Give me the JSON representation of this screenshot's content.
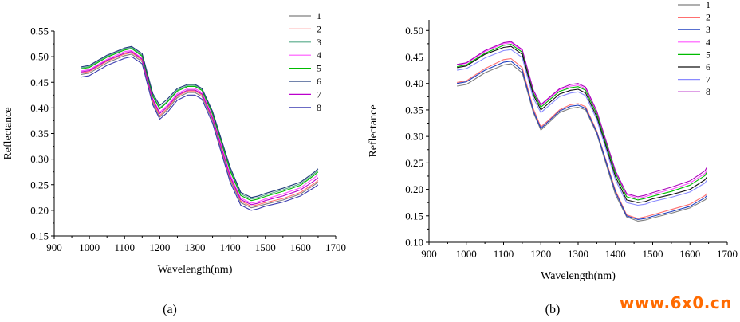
{
  "chart_data": [
    {
      "type": "line",
      "panel_label": "(a)",
      "xlabel": "Wavelength(nm)",
      "ylabel": "Reflectance",
      "xlim": [
        900,
        1700
      ],
      "ylim": [
        0.15,
        0.55
      ],
      "xticks": [
        900,
        1000,
        1100,
        1200,
        1300,
        1400,
        1500,
        1600,
        1700
      ],
      "yticks": [
        "0.15",
        "0.20",
        "0.25",
        "0.30",
        "0.35",
        "0.40",
        "0.45",
        "0.50",
        "0.55"
      ],
      "grid": false,
      "legend_position": "top-right",
      "x": [
        975,
        1000,
        1050,
        1100,
        1120,
        1150,
        1180,
        1200,
        1220,
        1250,
        1280,
        1300,
        1320,
        1350,
        1400,
        1430,
        1460,
        1480,
        1500,
        1550,
        1600,
        1640,
        1650
      ],
      "series": [
        {
          "name": "1",
          "color": "#7f7f7f",
          "values": [
            0.465,
            0.468,
            0.488,
            0.502,
            0.505,
            0.49,
            0.41,
            0.382,
            0.395,
            0.42,
            0.43,
            0.43,
            0.422,
            0.375,
            0.26,
            0.215,
            0.205,
            0.208,
            0.212,
            0.22,
            0.232,
            0.25,
            0.255
          ]
        },
        {
          "name": "2",
          "color": "#ff6f6f",
          "values": [
            0.468,
            0.471,
            0.491,
            0.505,
            0.508,
            0.493,
            0.413,
            0.385,
            0.398,
            0.423,
            0.433,
            0.433,
            0.425,
            0.378,
            0.263,
            0.218,
            0.208,
            0.211,
            0.215,
            0.223,
            0.235,
            0.253,
            0.258
          ]
        },
        {
          "name": "3",
          "color": "#55aa88",
          "values": [
            0.478,
            0.481,
            0.501,
            0.515,
            0.518,
            0.503,
            0.425,
            0.4,
            0.412,
            0.435,
            0.444,
            0.444,
            0.436,
            0.39,
            0.28,
            0.232,
            0.222,
            0.225,
            0.23,
            0.24,
            0.252,
            0.272,
            0.278
          ]
        },
        {
          "name": "4",
          "color": "#ff55ff",
          "values": [
            0.472,
            0.475,
            0.495,
            0.51,
            0.512,
            0.497,
            0.418,
            0.392,
            0.404,
            0.428,
            0.438,
            0.438,
            0.43,
            0.383,
            0.27,
            0.224,
            0.214,
            0.217,
            0.222,
            0.232,
            0.244,
            0.264,
            0.27
          ]
        },
        {
          "name": "5",
          "color": "#00bb00",
          "values": [
            0.476,
            0.479,
            0.499,
            0.513,
            0.516,
            0.501,
            0.423,
            0.398,
            0.41,
            0.433,
            0.442,
            0.442,
            0.434,
            0.388,
            0.277,
            0.229,
            0.219,
            0.222,
            0.227,
            0.237,
            0.249,
            0.269,
            0.275
          ]
        },
        {
          "name": "6",
          "color": "#1f3a7a",
          "values": [
            0.48,
            0.483,
            0.503,
            0.517,
            0.52,
            0.506,
            0.428,
            0.405,
            0.416,
            0.438,
            0.446,
            0.446,
            0.438,
            0.393,
            0.284,
            0.235,
            0.225,
            0.228,
            0.233,
            0.243,
            0.255,
            0.275,
            0.281
          ]
        },
        {
          "name": "7",
          "color": "#bb00cc",
          "values": [
            0.47,
            0.473,
            0.493,
            0.507,
            0.51,
            0.495,
            0.416,
            0.389,
            0.401,
            0.425,
            0.435,
            0.435,
            0.427,
            0.38,
            0.266,
            0.221,
            0.211,
            0.214,
            0.219,
            0.228,
            0.24,
            0.258,
            0.264
          ]
        },
        {
          "name": "8",
          "color": "#3a3ab0",
          "values": [
            0.46,
            0.463,
            0.483,
            0.497,
            0.5,
            0.486,
            0.406,
            0.378,
            0.39,
            0.415,
            0.425,
            0.425,
            0.417,
            0.37,
            0.255,
            0.21,
            0.2,
            0.203,
            0.208,
            0.216,
            0.228,
            0.245,
            0.25
          ]
        }
      ]
    },
    {
      "type": "line",
      "panel_label": "(b)",
      "xlabel": "Wavelength(nm)",
      "ylabel": "Reflectance",
      "xlim": [
        900,
        1700
      ],
      "ylim": [
        0.1,
        0.52
      ],
      "xticks": [
        900,
        1000,
        1100,
        1200,
        1300,
        1400,
        1500,
        1600,
        1700
      ],
      "yticks": [
        "0.10",
        "0.15",
        "0.20",
        "0.25",
        "0.30",
        "0.35",
        "0.40",
        "0.45",
        "0.50"
      ],
      "grid": false,
      "legend_position": "top-right",
      "x": [
        975,
        1000,
        1050,
        1100,
        1120,
        1150,
        1180,
        1200,
        1220,
        1250,
        1280,
        1300,
        1320,
        1350,
        1400,
        1430,
        1460,
        1480,
        1500,
        1550,
        1600,
        1640,
        1645
      ],
      "series": [
        {
          "name": "1",
          "color": "#7f7f7f",
          "values": [
            0.395,
            0.398,
            0.42,
            0.435,
            0.437,
            0.42,
            0.345,
            0.312,
            0.325,
            0.345,
            0.353,
            0.355,
            0.35,
            0.305,
            0.19,
            0.148,
            0.14,
            0.142,
            0.146,
            0.155,
            0.165,
            0.18,
            0.183
          ]
        },
        {
          "name": "2",
          "color": "#ff6f6f",
          "values": [
            0.402,
            0.405,
            0.428,
            0.445,
            0.447,
            0.43,
            0.352,
            0.318,
            0.33,
            0.35,
            0.36,
            0.362,
            0.356,
            0.31,
            0.198,
            0.152,
            0.145,
            0.148,
            0.152,
            0.162,
            0.172,
            0.188,
            0.192
          ]
        },
        {
          "name": "3",
          "color": "#2040c0",
          "values": [
            0.4,
            0.403,
            0.425,
            0.44,
            0.442,
            0.425,
            0.348,
            0.315,
            0.328,
            0.348,
            0.357,
            0.359,
            0.353,
            0.308,
            0.195,
            0.15,
            0.143,
            0.145,
            0.149,
            0.158,
            0.168,
            0.184,
            0.188
          ]
        },
        {
          "name": "4",
          "color": "#ff55ff",
          "values": [
            0.435,
            0.438,
            0.46,
            0.475,
            0.477,
            0.462,
            0.385,
            0.358,
            0.37,
            0.388,
            0.395,
            0.397,
            0.39,
            0.345,
            0.232,
            0.19,
            0.183,
            0.186,
            0.191,
            0.2,
            0.212,
            0.23,
            0.236
          ]
        },
        {
          "name": "5",
          "color": "#00bb00",
          "values": [
            0.432,
            0.435,
            0.457,
            0.472,
            0.474,
            0.459,
            0.382,
            0.355,
            0.367,
            0.385,
            0.392,
            0.394,
            0.387,
            0.342,
            0.23,
            0.186,
            0.18,
            0.183,
            0.187,
            0.196,
            0.208,
            0.226,
            0.232
          ]
        },
        {
          "name": "6",
          "color": "#111111",
          "values": [
            0.43,
            0.433,
            0.455,
            0.468,
            0.47,
            0.455,
            0.378,
            0.35,
            0.362,
            0.38,
            0.387,
            0.389,
            0.382,
            0.337,
            0.224,
            0.18,
            0.175,
            0.177,
            0.182,
            0.19,
            0.2,
            0.218,
            0.223
          ]
        },
        {
          "name": "7",
          "color": "#8a8aff",
          "values": [
            0.425,
            0.428,
            0.448,
            0.462,
            0.464,
            0.449,
            0.372,
            0.345,
            0.357,
            0.375,
            0.382,
            0.384,
            0.377,
            0.332,
            0.218,
            0.175,
            0.17,
            0.172,
            0.177,
            0.185,
            0.195,
            0.212,
            0.217
          ]
        },
        {
          "name": "8",
          "color": "#aa00bb",
          "values": [
            0.436,
            0.439,
            0.462,
            0.477,
            0.479,
            0.464,
            0.387,
            0.36,
            0.372,
            0.39,
            0.398,
            0.4,
            0.393,
            0.348,
            0.235,
            0.192,
            0.186,
            0.189,
            0.194,
            0.204,
            0.216,
            0.235,
            0.241
          ]
        }
      ]
    }
  ],
  "watermark": "www.6x0.cn"
}
